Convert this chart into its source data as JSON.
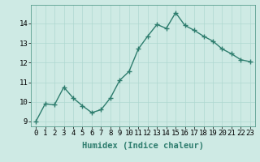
{
  "x": [
    0,
    1,
    2,
    3,
    4,
    5,
    6,
    7,
    8,
    9,
    10,
    11,
    12,
    13,
    14,
    15,
    16,
    17,
    18,
    19,
    20,
    21,
    22,
    23
  ],
  "y": [
    9.0,
    9.9,
    9.85,
    10.75,
    10.2,
    9.8,
    9.45,
    9.6,
    10.2,
    11.1,
    11.55,
    12.7,
    13.35,
    13.95,
    13.75,
    14.55,
    13.9,
    13.65,
    13.35,
    13.1,
    12.7,
    12.45,
    12.15,
    12.05
  ],
  "line_color": "#2e7d6e",
  "marker": "+",
  "marker_size": 4,
  "marker_linewidth": 1.0,
  "line_width": 1.0,
  "xlabel": "Humidex (Indice chaleur)",
  "xlabel_fontsize": 7.5,
  "xlim": [
    -0.5,
    23.5
  ],
  "ylim": [
    8.75,
    14.95
  ],
  "yticks": [
    9,
    10,
    11,
    12,
    13,
    14
  ],
  "xticks": [
    0,
    1,
    2,
    3,
    4,
    5,
    6,
    7,
    8,
    9,
    10,
    11,
    12,
    13,
    14,
    15,
    16,
    17,
    18,
    19,
    20,
    21,
    22,
    23
  ],
  "background_color": "#ceeae4",
  "grid_color": "#afd8d0",
  "tick_fontsize": 6.5,
  "font_family": "monospace"
}
